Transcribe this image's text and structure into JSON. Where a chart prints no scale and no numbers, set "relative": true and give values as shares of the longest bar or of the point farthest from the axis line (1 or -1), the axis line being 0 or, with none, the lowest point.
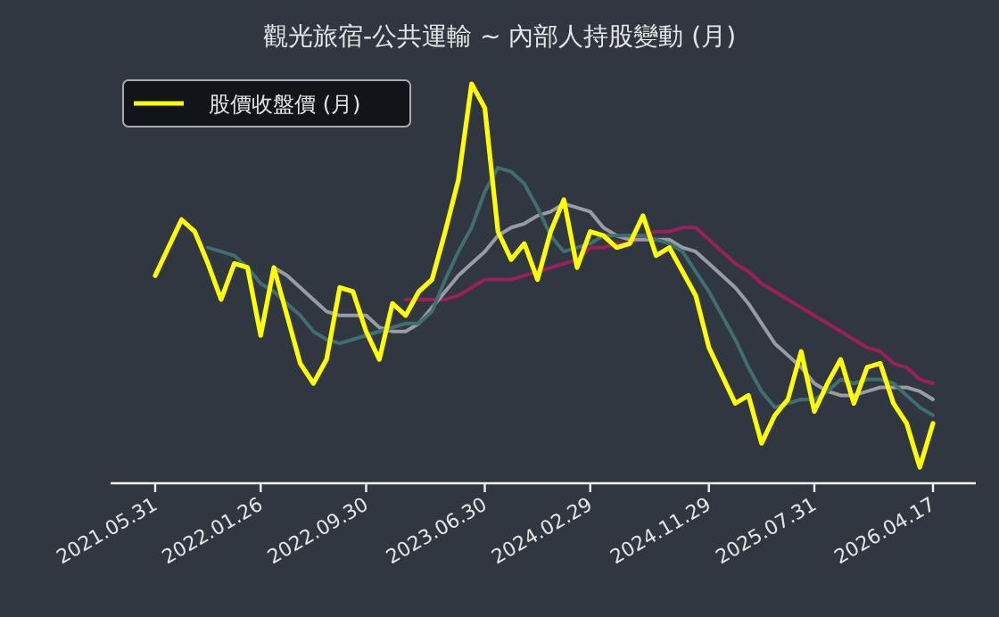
{
  "chart_data": {
    "type": "line",
    "title": "觀光旅宿-公共運輸 ~ 內部人持股變動 (月)",
    "relative": true,
    "grid": false,
    "legend": "top left",
    "tick_labels": "x",
    "marker": "none",
    "line_style": "solid",
    "categories": [
      "2021.05.31",
      null,
      null,
      null,
      null,
      null,
      null,
      null,
      "2022.01.26",
      null,
      null,
      null,
      null,
      null,
      null,
      null,
      "2022.09.30",
      null,
      null,
      null,
      null,
      null,
      null,
      null,
      null,
      "2023.06.30",
      null,
      null,
      null,
      null,
      null,
      null,
      null,
      "2024.02.29",
      null,
      null,
      null,
      null,
      null,
      null,
      null,
      null,
      "2024.11.29",
      null,
      null,
      null,
      null,
      null,
      null,
      null,
      "2025.07.31",
      null,
      null,
      null,
      null,
      null,
      null,
      null,
      null,
      "2026.04.17"
    ],
    "series": [
      {
        "name": "股價收盤價 (月)",
        "color": "#ffff00",
        "values": [
          0.52,
          0.59,
          0.66,
          0.63,
          0.55,
          0.46,
          0.55,
          0.54,
          0.37,
          0.54,
          0.42,
          0.3,
          0.25,
          0.31,
          0.49,
          0.48,
          0.38,
          0.31,
          0.45,
          0.42,
          0.48,
          0.51,
          0.63,
          0.76,
          1.0,
          0.94,
          0.63,
          0.56,
          0.6,
          0.51,
          0.63,
          0.71,
          0.54,
          0.63,
          0.62,
          0.59,
          0.6,
          0.67,
          0.57,
          0.59,
          0.53,
          0.47,
          0.34,
          0.27,
          0.2,
          0.22,
          0.1,
          0.17,
          0.21,
          0.33,
          0.18,
          0.25,
          0.31,
          0.2,
          0.29,
          0.3,
          0.2,
          0.15,
          0.04,
          0.15
        ]
      },
      {
        "color": "#406f72",
        "values": [
          null,
          null,
          null,
          null,
          0.59,
          0.58,
          0.57,
          0.54,
          0.5,
          0.48,
          0.45,
          0.42,
          0.38,
          0.36,
          0.35,
          0.36,
          0.37,
          0.38,
          0.39,
          0.4,
          0.4,
          0.43,
          0.51,
          0.58,
          0.64,
          0.73,
          0.79,
          0.78,
          0.75,
          0.69,
          0.62,
          0.58,
          0.59,
          0.6,
          0.62,
          0.62,
          0.62,
          0.62,
          0.61,
          0.6,
          0.58,
          0.53,
          0.48,
          0.42,
          0.36,
          0.29,
          0.23,
          0.19,
          0.2,
          0.21,
          0.21,
          0.23,
          0.26,
          0.25,
          0.26,
          0.26,
          0.25,
          0.22,
          0.19,
          0.17
        ]
      },
      {
        "color": "#9a9ca2",
        "values": [
          null,
          null,
          null,
          null,
          null,
          null,
          null,
          null,
          null,
          0.54,
          0.52,
          0.49,
          0.46,
          0.43,
          0.42,
          0.42,
          0.42,
          0.39,
          0.38,
          0.38,
          0.4,
          0.44,
          0.48,
          0.52,
          0.55,
          0.58,
          0.62,
          0.64,
          0.65,
          0.67,
          0.68,
          0.7,
          0.69,
          0.68,
          0.64,
          0.62,
          0.61,
          0.61,
          0.61,
          0.61,
          0.59,
          0.58,
          0.55,
          0.52,
          0.49,
          0.45,
          0.4,
          0.35,
          0.32,
          0.29,
          0.25,
          0.23,
          0.22,
          0.22,
          0.23,
          0.24,
          0.24,
          0.24,
          0.23,
          0.21
        ]
      },
      {
        "color": "#9c1f5c",
        "values": [
          null,
          null,
          null,
          null,
          null,
          null,
          null,
          null,
          null,
          null,
          null,
          null,
          null,
          null,
          null,
          null,
          null,
          null,
          null,
          0.46,
          0.46,
          0.46,
          0.46,
          0.47,
          0.49,
          0.51,
          0.51,
          0.51,
          0.52,
          0.53,
          0.54,
          0.55,
          0.56,
          0.59,
          0.59,
          0.6,
          0.6,
          0.62,
          0.63,
          0.63,
          0.64,
          0.64,
          0.61,
          0.58,
          0.55,
          0.53,
          0.5,
          0.48,
          0.46,
          0.44,
          0.42,
          0.4,
          0.38,
          0.36,
          0.34,
          0.33,
          0.3,
          0.29,
          0.26,
          0.25
        ]
      }
    ]
  }
}
